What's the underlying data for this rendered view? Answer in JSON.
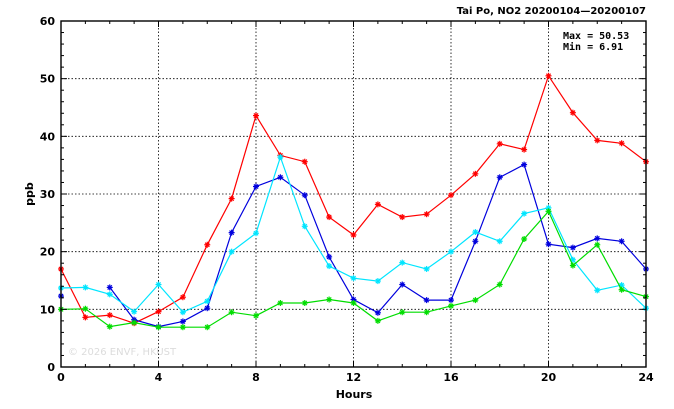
{
  "chart_data": {
    "type": "line",
    "title": "Tai Po, NO2 20200104—20200107",
    "xlabel": "Hours",
    "ylabel": "ppb",
    "xlim": [
      0,
      24
    ],
    "ylim": [
      0,
      60
    ],
    "xticks": [
      0,
      4,
      8,
      12,
      16,
      20,
      24
    ],
    "yticks": [
      0,
      10,
      20,
      30,
      40,
      50,
      60
    ],
    "grid": true,
    "stats": {
      "max_label": "Max = 50.53",
      "min_label": "Min =  6.91"
    },
    "watermark": "© 2026  ENVF, HKUST",
    "x": [
      0,
      1,
      2,
      3,
      4,
      5,
      6,
      7,
      8,
      9,
      10,
      11,
      12,
      13,
      14,
      15,
      16,
      17,
      18,
      19,
      20,
      21,
      22,
      23,
      24
    ],
    "series": [
      {
        "color": "#ff0000",
        "values": [
          17.0,
          8.6,
          9.0,
          7.6,
          9.6,
          12.1,
          21.2,
          29.2,
          43.6,
          36.7,
          35.6,
          26.0,
          22.9,
          28.2,
          26.0,
          26.5,
          29.8,
          33.5,
          38.7,
          37.7,
          50.5,
          44.1,
          39.3,
          38.8,
          35.6
        ]
      },
      {
        "color": "#0000dd",
        "values": [
          12.3,
          null,
          13.8,
          8.2,
          7.0,
          7.9,
          10.2,
          23.3,
          31.3,
          32.9,
          29.8,
          19.1,
          11.7,
          9.4,
          14.3,
          11.6,
          11.6,
          21.8,
          32.9,
          35.1,
          21.3,
          20.7,
          22.3,
          21.8,
          17.0
        ]
      },
      {
        "color": "#00e5ff",
        "values": [
          13.7,
          13.8,
          12.6,
          9.6,
          14.3,
          9.5,
          11.4,
          20.0,
          23.2,
          36.4,
          24.4,
          17.5,
          15.4,
          14.9,
          18.1,
          17.0,
          20.0,
          23.4,
          21.8,
          26.6,
          27.6,
          18.6,
          13.3,
          14.2,
          10.2
        ]
      },
      {
        "color": "#00dd00",
        "values": [
          10.0,
          10.1,
          7.0,
          7.7,
          6.9,
          6.9,
          6.9,
          9.5,
          8.9,
          11.1,
          11.1,
          11.7,
          11.1,
          8.0,
          9.5,
          9.5,
          10.6,
          11.6,
          14.3,
          22.2,
          27.0,
          17.6,
          21.2,
          13.4,
          12.2
        ]
      }
    ]
  }
}
